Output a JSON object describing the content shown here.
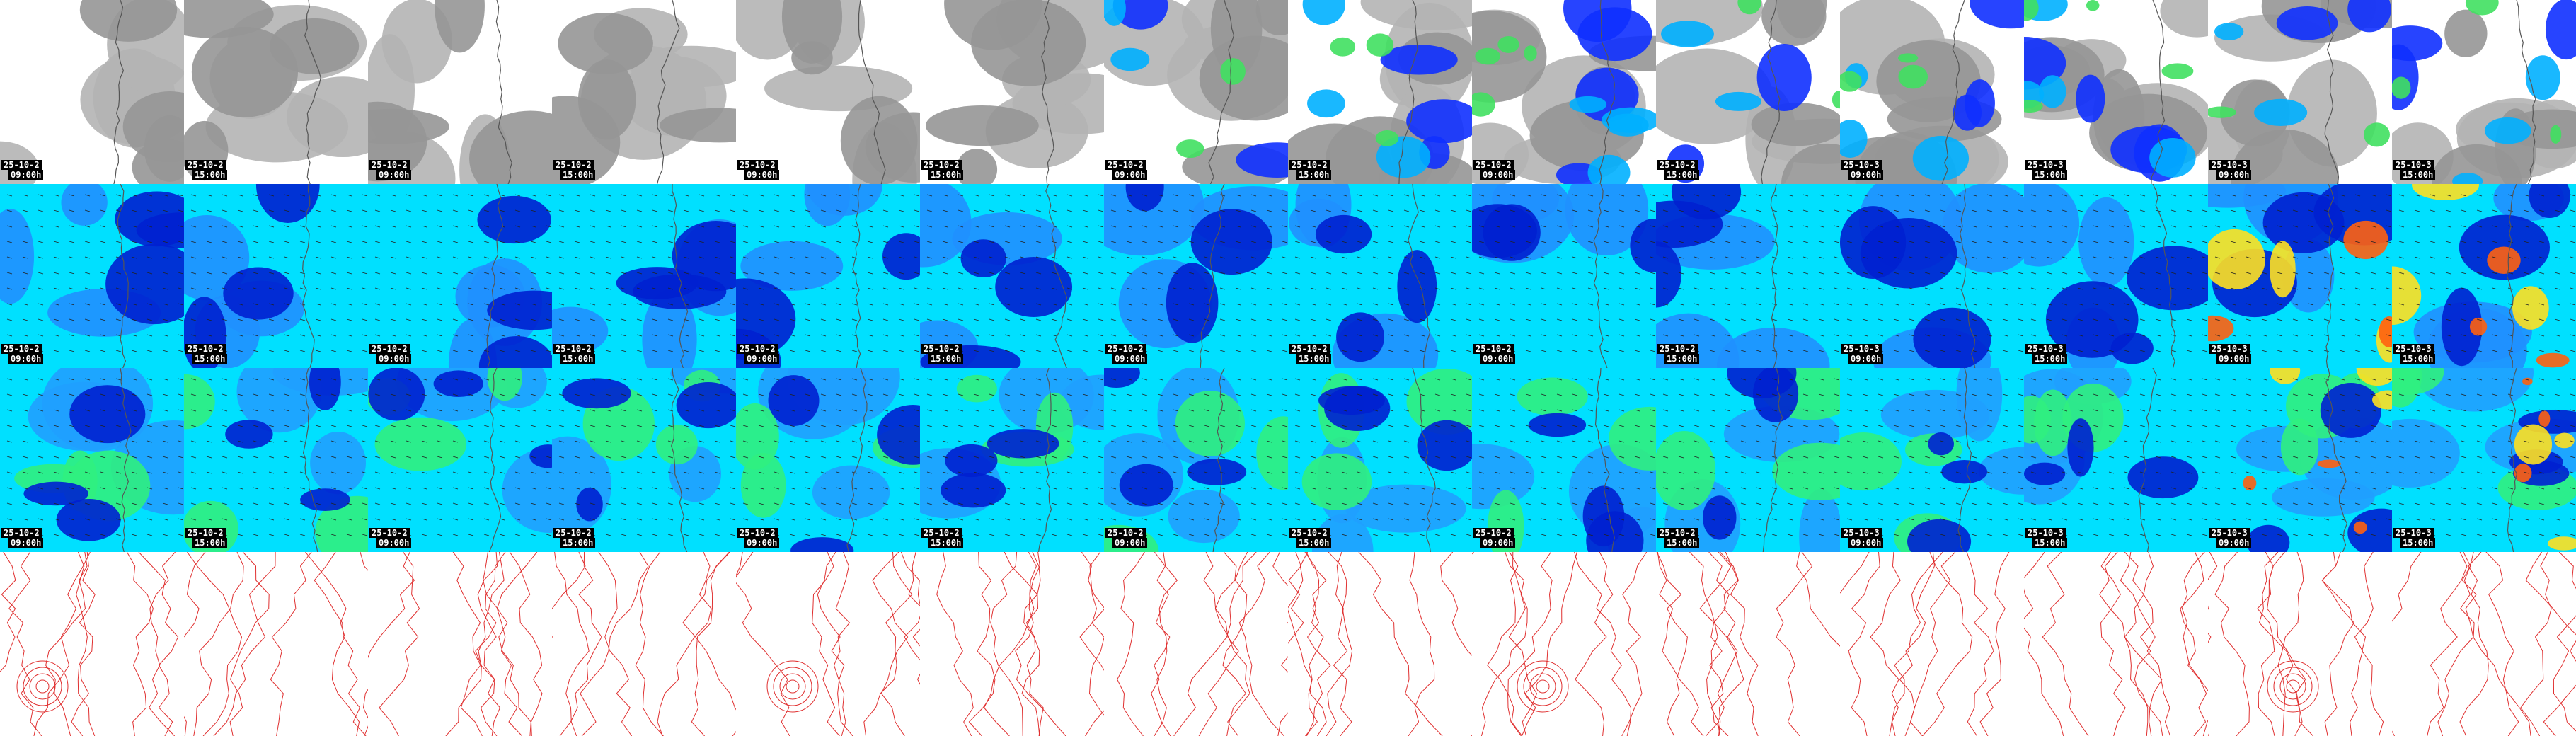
{
  "rows": [
    {
      "tiles": [
        {
          "date": "25-10-2",
          "time": "09:00h"
        },
        {
          "date": "25-10-2",
          "time": "15:00h"
        },
        {
          "date": "25-10-2",
          "time": "09:00h"
        },
        {
          "date": "25-10-2",
          "time": "15:00h"
        },
        {
          "date": "25-10-2",
          "time": "09:00h"
        },
        {
          "date": "25-10-2",
          "time": "15:00h"
        },
        {
          "date": "25-10-2",
          "time": "09:00h"
        },
        {
          "date": "25-10-2",
          "time": "15:00h"
        },
        {
          "date": "25-10-2",
          "time": "09:00h"
        },
        {
          "date": "25-10-2",
          "time": "15:00h"
        },
        {
          "date": "25-10-3",
          "time": "09:00h"
        },
        {
          "date": "25-10-3",
          "time": "15:00h"
        },
        {
          "date": "25-10-3",
          "time": "09:00h"
        },
        {
          "date": "25-10-3",
          "time": "15:00h"
        }
      ]
    },
    {
      "tiles": [
        {
          "date": "25-10-2",
          "time": "09:00h"
        },
        {
          "date": "25-10-2",
          "time": "15:00h"
        },
        {
          "date": "25-10-2",
          "time": "09:00h"
        },
        {
          "date": "25-10-2",
          "time": "15:00h"
        },
        {
          "date": "25-10-2",
          "time": "09:00h"
        },
        {
          "date": "25-10-2",
          "time": "15:00h"
        },
        {
          "date": "25-10-2",
          "time": "09:00h"
        },
        {
          "date": "25-10-2",
          "time": "15:00h"
        },
        {
          "date": "25-10-2",
          "time": "09:00h"
        },
        {
          "date": "25-10-2",
          "time": "15:00h"
        },
        {
          "date": "25-10-3",
          "time": "09:00h"
        },
        {
          "date": "25-10-3",
          "time": "15:00h"
        },
        {
          "date": "25-10-3",
          "time": "09:00h"
        },
        {
          "date": "25-10-3",
          "time": "15:00h"
        }
      ]
    },
    {
      "tiles": [
        {
          "date": "25-10-2",
          "time": "09:00h"
        },
        {
          "date": "25-10-2",
          "time": "15:00h"
        },
        {
          "date": "25-10-2",
          "time": "09:00h"
        },
        {
          "date": "25-10-2",
          "time": "15:00h"
        },
        {
          "date": "25-10-2",
          "time": "09:00h"
        },
        {
          "date": "25-10-2",
          "time": "15:00h"
        },
        {
          "date": "25-10-2",
          "time": "09:00h"
        },
        {
          "date": "25-10-2",
          "time": "15:00h"
        },
        {
          "date": "25-10-2",
          "time": "09:00h"
        },
        {
          "date": "25-10-2",
          "time": "15:00h"
        },
        {
          "date": "25-10-3",
          "time": "09:00h"
        },
        {
          "date": "25-10-3",
          "time": "15:00h"
        },
        {
          "date": "25-10-3",
          "time": "09:00h"
        },
        {
          "date": "25-10-3",
          "time": "15:00h"
        }
      ]
    }
  ]
}
